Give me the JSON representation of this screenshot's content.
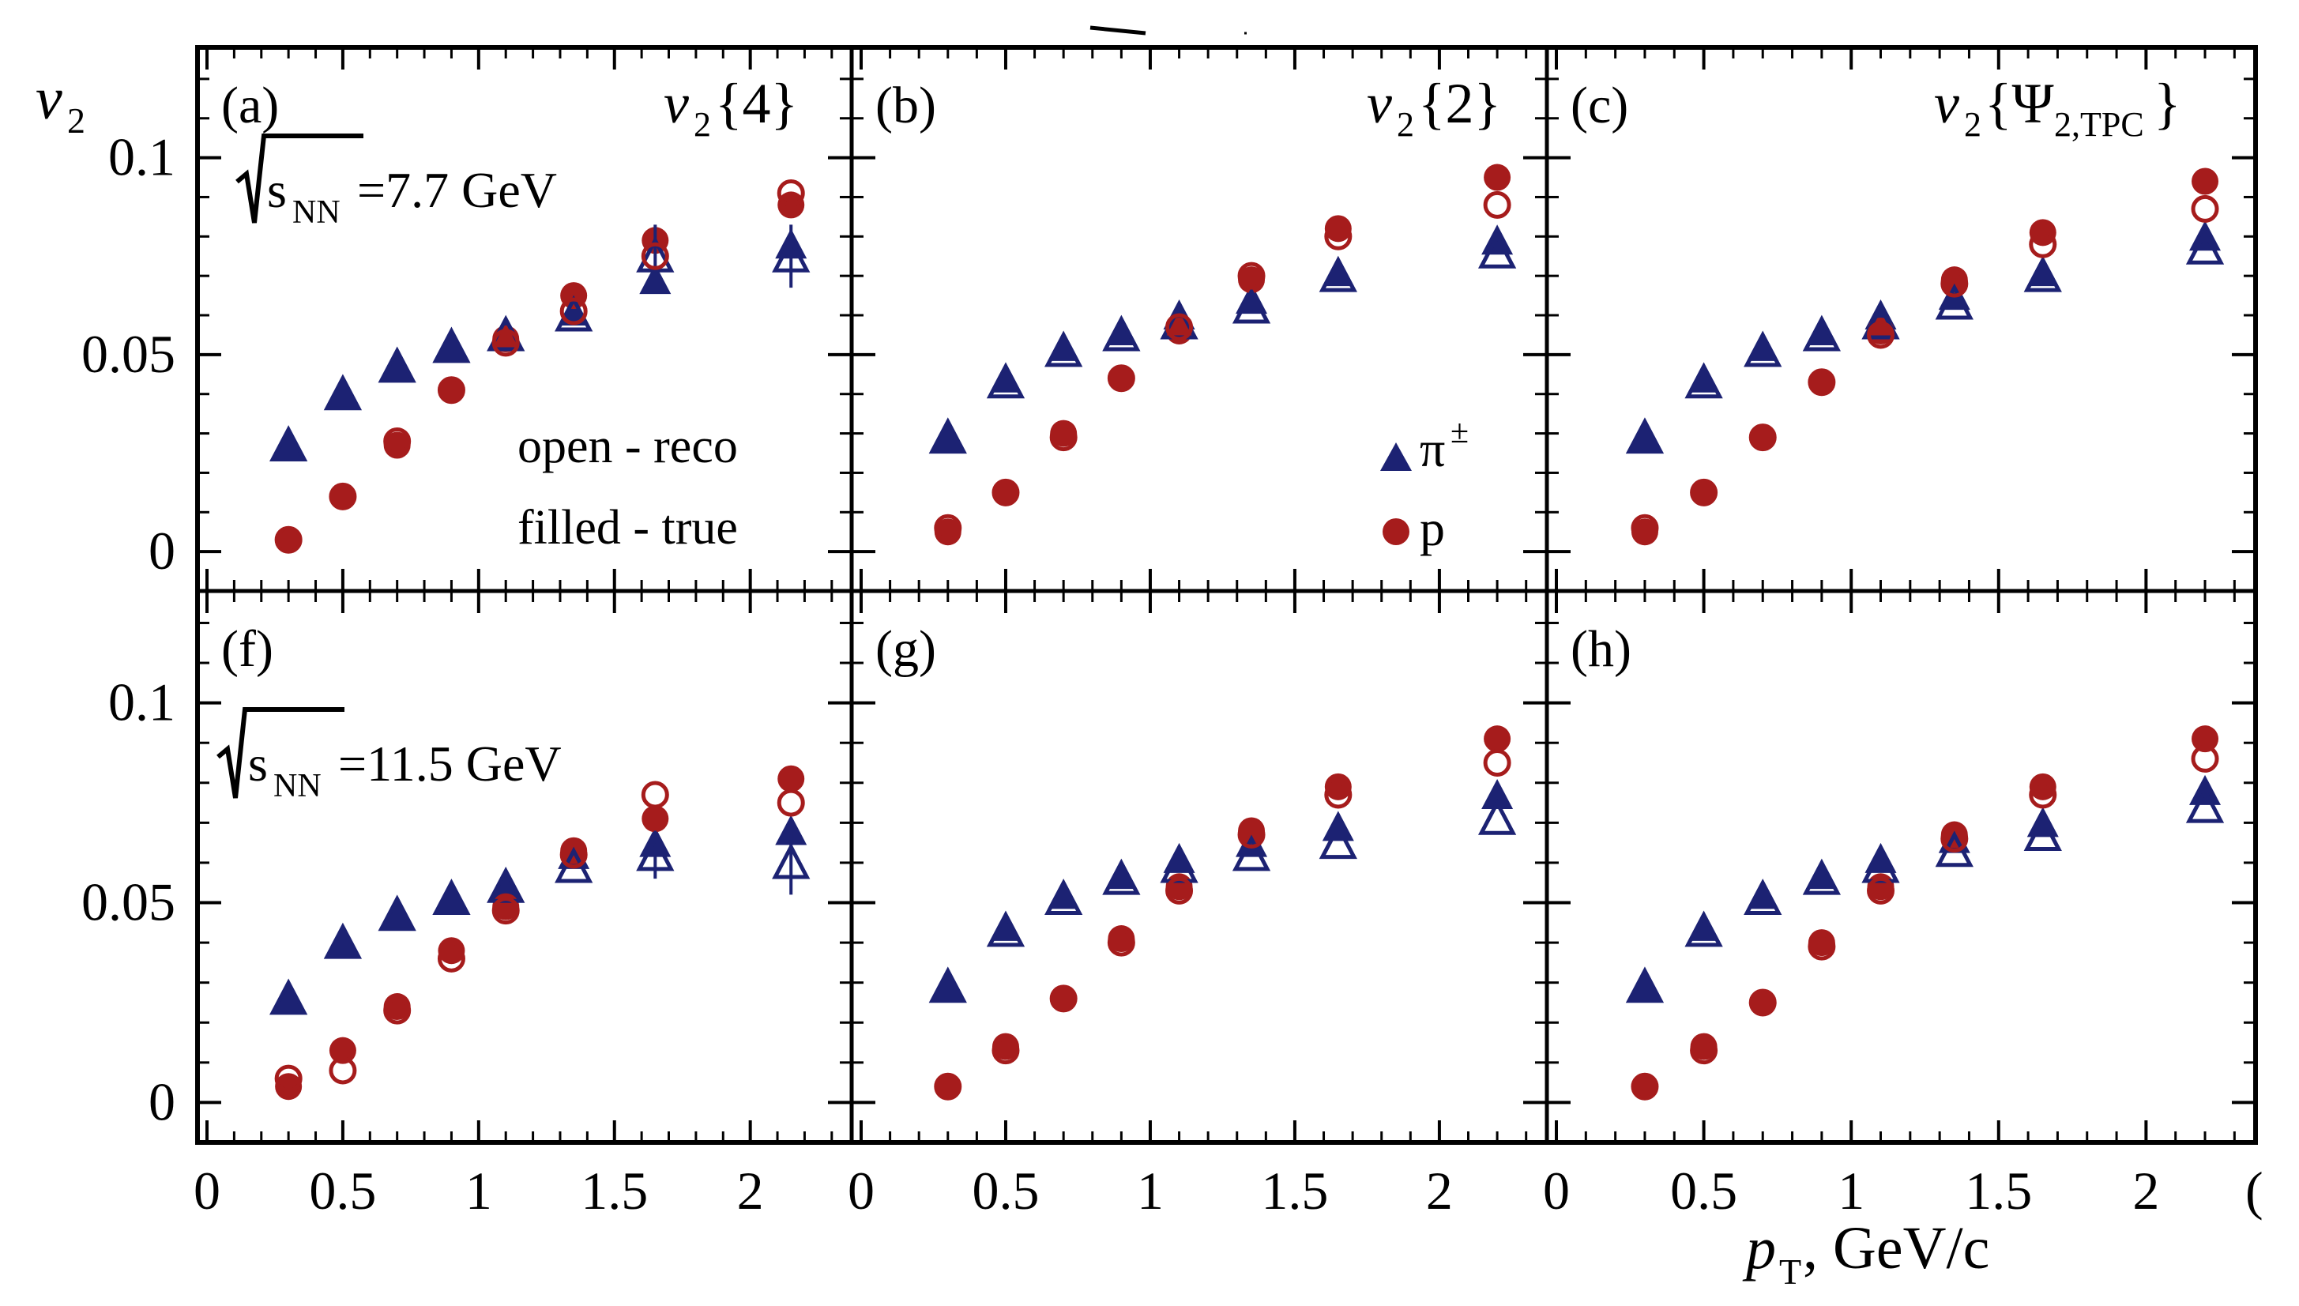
{
  "figure": {
    "y_axis_label": "v",
    "y_axis_sub": "2",
    "x_axis_label_p": "p",
    "x_axis_label_sub": "T",
    "x_axis_label_rest": ", GeV/c",
    "x_tick_labels": [
      "0",
      "0.5",
      "1",
      "1.5",
      "2"
    ],
    "last_x_tick_fragment": "(",
    "y_tick_labels": [
      "0",
      "0.05",
      "0.1"
    ],
    "colors": {
      "pion": "#1c2273",
      "proton": "#a61c1c"
    }
  },
  "chart_data": [
    {
      "type": "scatter",
      "panel": "(a)",
      "row": 0,
      "col": 0,
      "method": "v2{4}",
      "energy_label": "sNN=7.7 GeV",
      "xlim": [
        0,
        2.35
      ],
      "ylim": [
        -0.01,
        0.128
      ],
      "x": [
        0.3,
        0.5,
        0.7,
        0.9,
        1.1,
        1.35,
        1.65,
        2.15
      ],
      "series": [
        {
          "name": "π±",
          "particle": "pion",
          "sample": "true",
          "values": [
            0.027,
            0.04,
            0.047,
            0.052,
            0.055,
            0.061,
            0.069,
            0.078
          ]
        },
        {
          "name": "π±",
          "particle": "pion",
          "sample": "reco",
          "values": [
            0.027,
            0.04,
            0.047,
            0.052,
            0.055,
            0.06,
            0.075,
            0.075
          ],
          "errors": [
            0,
            0,
            0,
            0,
            0,
            0,
            0.008,
            0.008
          ]
        },
        {
          "name": "p",
          "particle": "proton",
          "sample": "true",
          "values": [
            0.003,
            0.014,
            0.027,
            0.041,
            0.054,
            0.065,
            0.079,
            0.088
          ]
        },
        {
          "name": "p",
          "particle": "proton",
          "sample": "reco",
          "values": [
            0.003,
            0.014,
            0.028,
            0.041,
            0.053,
            0.061,
            0.075,
            0.091
          ]
        }
      ]
    },
    {
      "type": "scatter",
      "panel": "(b)",
      "row": 0,
      "col": 1,
      "method": "v2{2}",
      "energy_label": "",
      "xlim": [
        0,
        2.35
      ],
      "ylim": [
        -0.01,
        0.128
      ],
      "x": [
        0.3,
        0.5,
        0.7,
        0.9,
        1.1,
        1.35,
        1.65,
        2.2
      ],
      "series": [
        {
          "name": "π±",
          "particle": "pion",
          "sample": "true",
          "values": [
            0.029,
            0.044,
            0.052,
            0.056,
            0.06,
            0.064,
            0.071,
            0.079
          ]
        },
        {
          "name": "π±",
          "particle": "pion",
          "sample": "reco",
          "values": [
            0.029,
            0.043,
            0.051,
            0.055,
            0.058,
            0.062,
            0.07,
            0.076
          ]
        },
        {
          "name": "p",
          "particle": "proton",
          "sample": "true",
          "values": [
            0.005,
            0.015,
            0.03,
            0.044,
            0.056,
            0.069,
            0.082,
            0.095
          ]
        },
        {
          "name": "p",
          "particle": "proton",
          "sample": "reco",
          "values": [
            0.006,
            0.015,
            0.029,
            0.044,
            0.057,
            0.07,
            0.08,
            0.088
          ]
        }
      ]
    },
    {
      "type": "scatter",
      "panel": "(c)",
      "row": 0,
      "col": 2,
      "method": "v2{Ψ2,TPC}",
      "energy_label": "",
      "xlim": [
        0,
        2.35
      ],
      "ylim": [
        -0.01,
        0.128
      ],
      "x": [
        0.3,
        0.5,
        0.7,
        0.9,
        1.1,
        1.35,
        1.65,
        2.2
      ],
      "series": [
        {
          "name": "π±",
          "particle": "pion",
          "sample": "true",
          "values": [
            0.029,
            0.044,
            0.052,
            0.056,
            0.06,
            0.065,
            0.071,
            0.08
          ]
        },
        {
          "name": "π±",
          "particle": "pion",
          "sample": "reco",
          "values": [
            0.029,
            0.043,
            0.051,
            0.055,
            0.058,
            0.063,
            0.07,
            0.077
          ]
        },
        {
          "name": "p",
          "particle": "proton",
          "sample": "true",
          "values": [
            0.005,
            0.015,
            0.029,
            0.043,
            0.056,
            0.069,
            0.081,
            0.094
          ]
        },
        {
          "name": "p",
          "particle": "proton",
          "sample": "reco",
          "values": [
            0.006,
            0.015,
            0.029,
            0.043,
            0.055,
            0.068,
            0.078,
            0.087
          ]
        }
      ]
    },
    {
      "type": "scatter",
      "panel": "(f)",
      "row": 1,
      "col": 0,
      "method": "",
      "energy_label": "sNN=11.5 GeV",
      "xlim": [
        0,
        2.35
      ],
      "ylim": [
        -0.01,
        0.128
      ],
      "x": [
        0.3,
        0.5,
        0.7,
        0.9,
        1.1,
        1.35,
        1.65,
        2.15
      ],
      "series": [
        {
          "name": "π±",
          "particle": "pion",
          "sample": "true",
          "values": [
            0.026,
            0.04,
            0.047,
            0.051,
            0.054,
            0.062,
            0.065,
            0.068
          ]
        },
        {
          "name": "π±",
          "particle": "pion",
          "sample": "reco",
          "values": [
            0.026,
            0.04,
            0.047,
            0.051,
            0.054,
            0.059,
            0.062,
            0.06
          ],
          "errors": [
            0,
            0,
            0,
            0,
            0,
            0,
            0.006,
            0.008
          ]
        },
        {
          "name": "p",
          "particle": "proton",
          "sample": "true",
          "values": [
            0.004,
            0.013,
            0.024,
            0.038,
            0.049,
            0.063,
            0.071,
            0.081
          ]
        },
        {
          "name": "p",
          "particle": "proton",
          "sample": "reco",
          "values": [
            0.006,
            0.008,
            0.023,
            0.036,
            0.048,
            0.062,
            0.077,
            0.075
          ]
        }
      ]
    },
    {
      "type": "scatter",
      "panel": "(g)",
      "row": 1,
      "col": 1,
      "method": "",
      "energy_label": "",
      "xlim": [
        0,
        2.35
      ],
      "ylim": [
        -0.01,
        0.128
      ],
      "x": [
        0.3,
        0.5,
        0.7,
        0.9,
        1.1,
        1.35,
        1.65,
        2.2
      ],
      "series": [
        {
          "name": "π±",
          "particle": "pion",
          "sample": "true",
          "values": [
            0.029,
            0.044,
            0.052,
            0.057,
            0.061,
            0.065,
            0.069,
            0.077
          ]
        },
        {
          "name": "π±",
          "particle": "pion",
          "sample": "reco",
          "values": [
            0.029,
            0.043,
            0.051,
            0.056,
            0.059,
            0.062,
            0.065,
            0.071
          ]
        },
        {
          "name": "p",
          "particle": "proton",
          "sample": "true",
          "values": [
            0.004,
            0.014,
            0.026,
            0.041,
            0.054,
            0.068,
            0.079,
            0.091
          ]
        },
        {
          "name": "p",
          "particle": "proton",
          "sample": "reco",
          "values": [
            0.004,
            0.013,
            0.026,
            0.04,
            0.053,
            0.067,
            0.077,
            0.085
          ]
        }
      ]
    },
    {
      "type": "scatter",
      "panel": "(h)",
      "row": 1,
      "col": 2,
      "method": "",
      "energy_label": "",
      "xlim": [
        0,
        2.35
      ],
      "ylim": [
        -0.01,
        0.128
      ],
      "x": [
        0.3,
        0.5,
        0.7,
        0.9,
        1.1,
        1.35,
        1.65,
        2.2
      ],
      "series": [
        {
          "name": "π±",
          "particle": "pion",
          "sample": "true",
          "values": [
            0.029,
            0.044,
            0.052,
            0.057,
            0.061,
            0.066,
            0.07,
            0.078
          ]
        },
        {
          "name": "π±",
          "particle": "pion",
          "sample": "reco",
          "values": [
            0.029,
            0.043,
            0.051,
            0.056,
            0.059,
            0.063,
            0.067,
            0.074
          ]
        },
        {
          "name": "p",
          "particle": "proton",
          "sample": "true",
          "values": [
            0.004,
            0.014,
            0.025,
            0.04,
            0.054,
            0.067,
            0.079,
            0.091
          ]
        },
        {
          "name": "p",
          "particle": "proton",
          "sample": "reco",
          "values": [
            0.004,
            0.013,
            0.025,
            0.039,
            0.053,
            0.066,
            0.077,
            0.086
          ]
        }
      ]
    }
  ],
  "annotations": {
    "open_label": "open - reco",
    "filled_label": "filled - true",
    "legend_pion": "π",
    "legend_pion_sup": "±",
    "legend_proton": "p"
  }
}
